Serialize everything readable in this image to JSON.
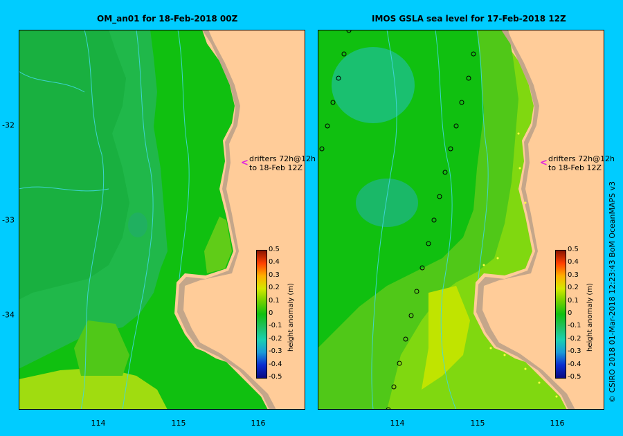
{
  "panels": [
    {
      "title": "OM_an01  for 18-Feb-2018 00Z"
    },
    {
      "title": "IMOS GSLA sea level  for 17-Feb-2018 12Z"
    }
  ],
  "x_ticks": [
    "114",
    "115",
    "116"
  ],
  "y_ticks": [
    "-32",
    "-33",
    "-34"
  ],
  "colorbar": {
    "label": "height anomaly (m)",
    "ticks": [
      "0.5",
      "0.4",
      "0.3",
      "0.2",
      "0.1",
      "0",
      "-0.1",
      "-0.2",
      "-0.3",
      "-0.4",
      "-0.5"
    ]
  },
  "drifters_annotation": {
    "line1": "drifters 72h@12h",
    "line2": "to 18-Feb 12Z",
    "arrow": "<"
  },
  "credit": "© CSIRO 2018   01-Mar-2018 12:23:43 BoM OceanMAPS v3",
  "colors": {
    "frame": "#00ccff",
    "land": "#ffcc99",
    "coast": "#c4a68a",
    "arrow": "#e020e0"
  }
}
